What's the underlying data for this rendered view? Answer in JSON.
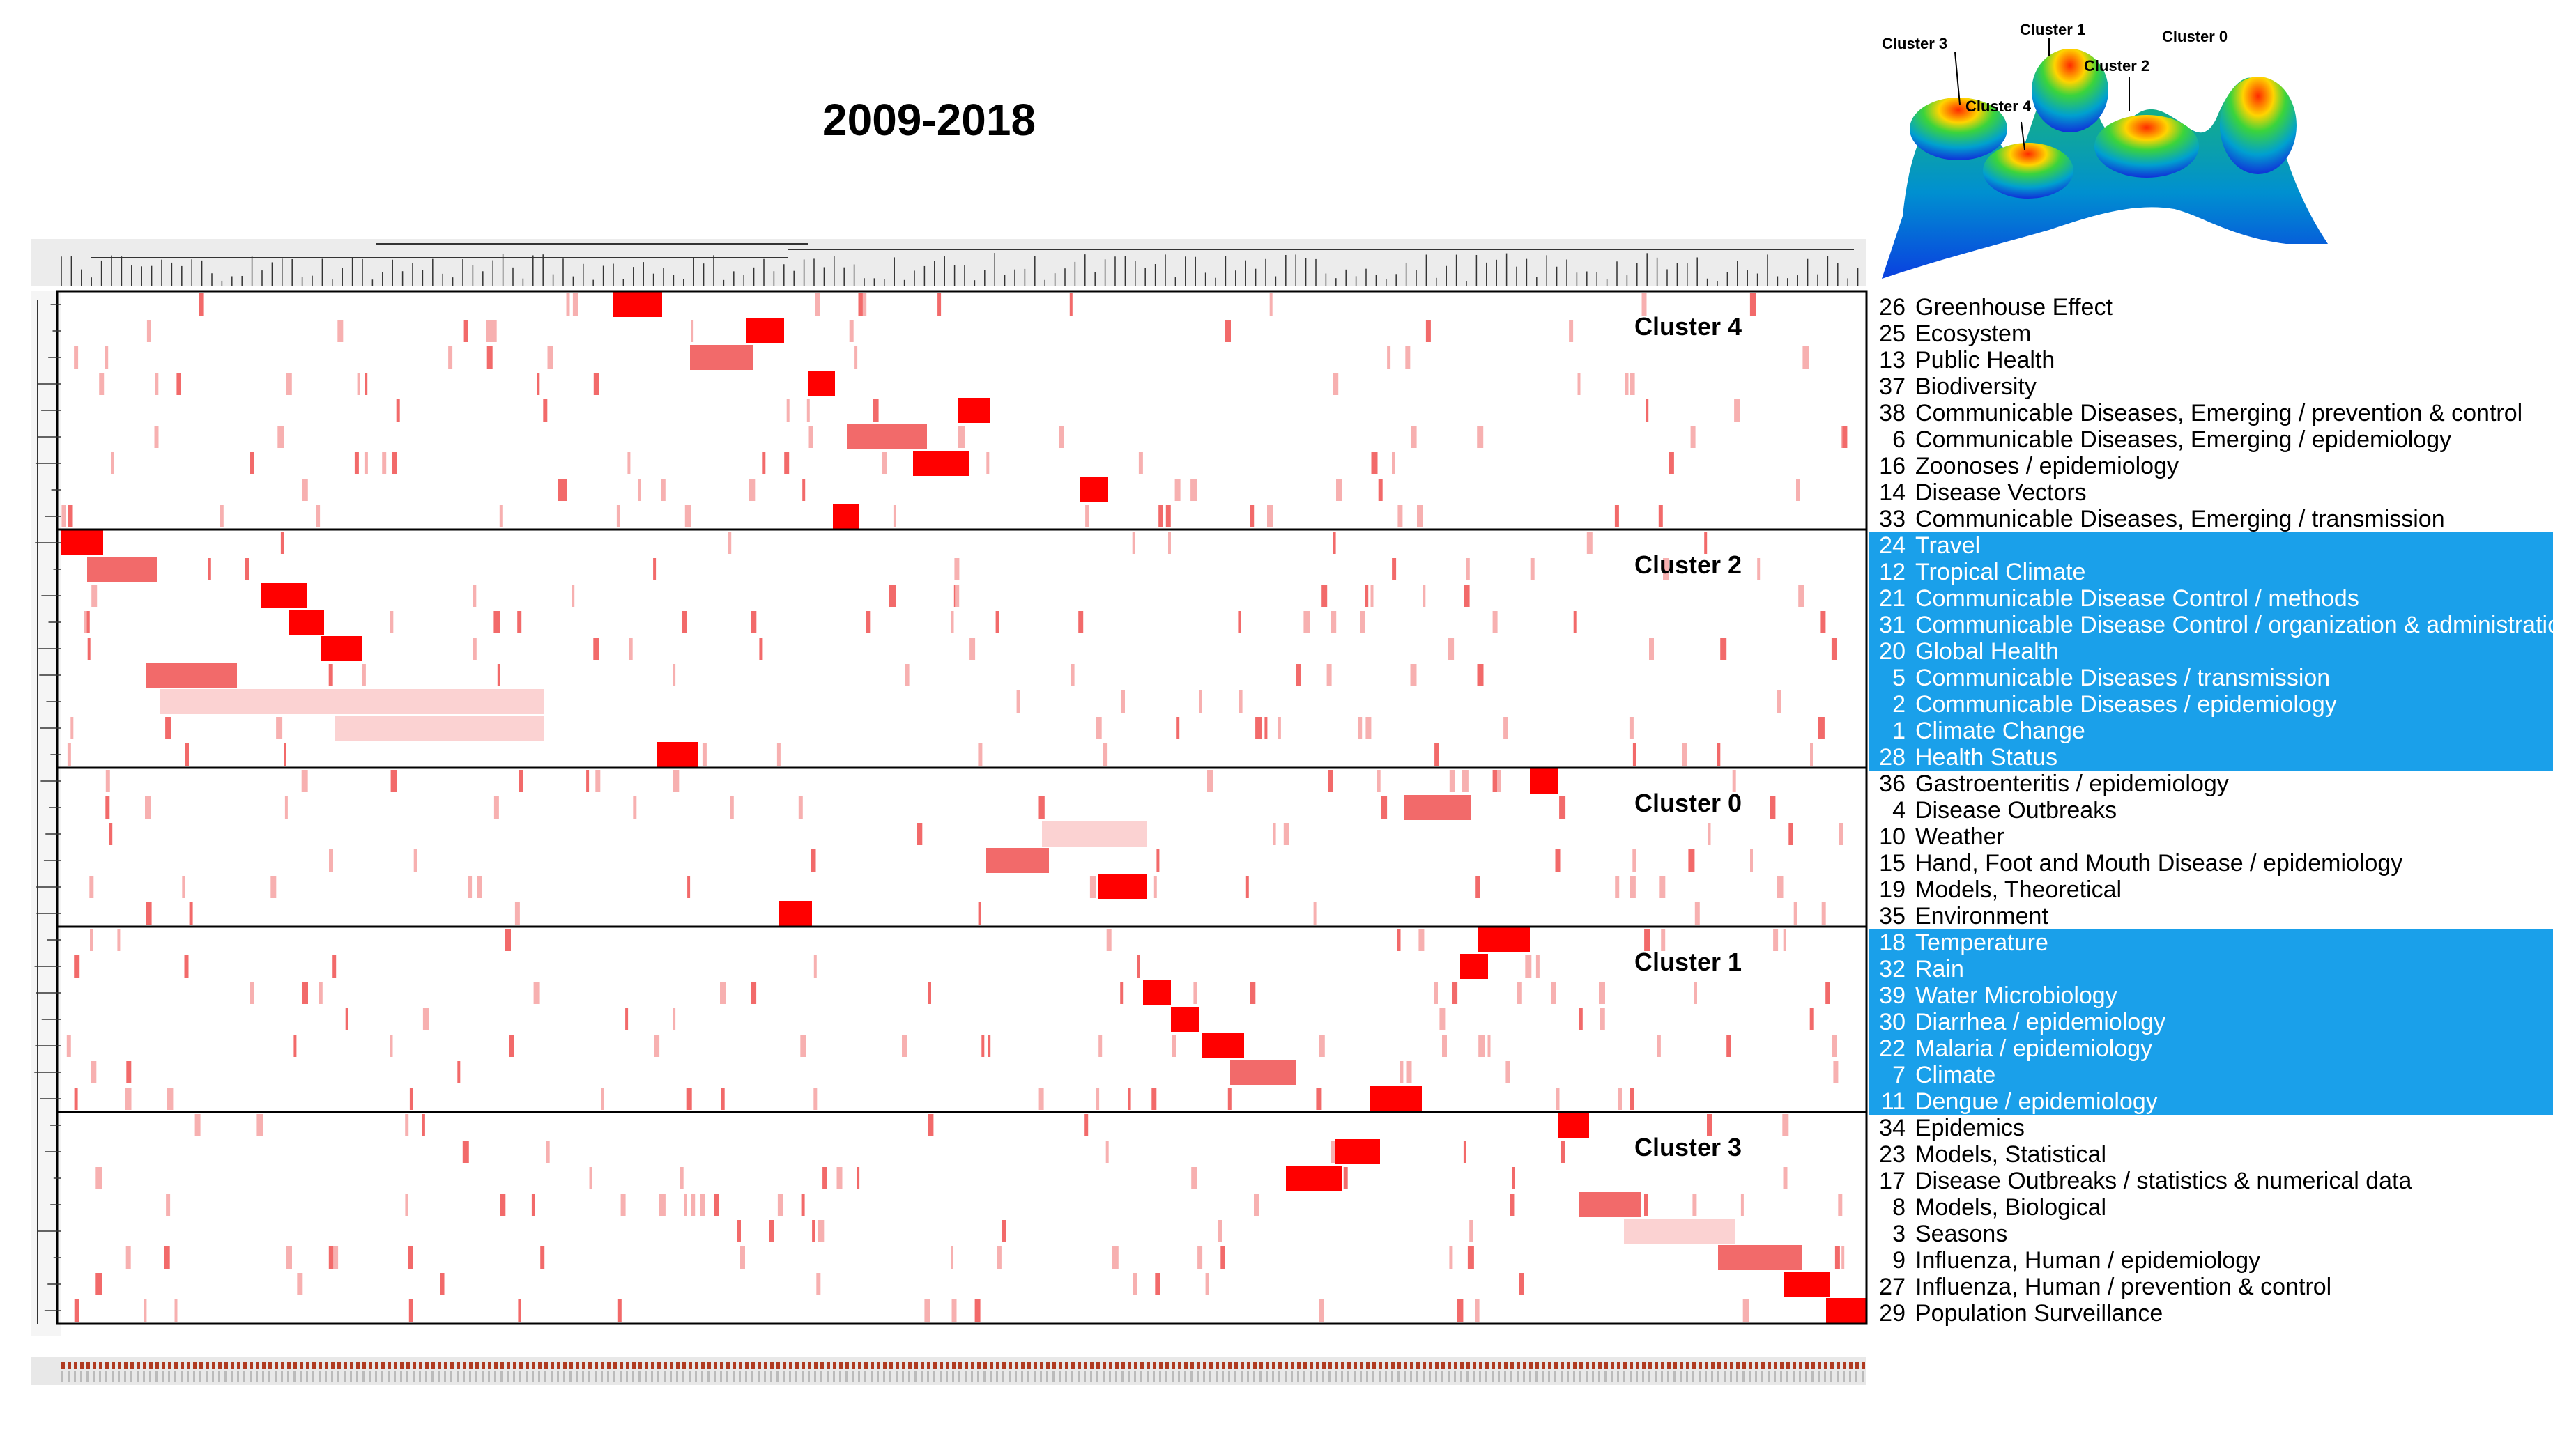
{
  "title": "2009-2018",
  "legend_peaks": [
    "Cluster 3",
    "Cluster 1",
    "Cluster 0",
    "Cluster 2",
    "Cluster 4"
  ],
  "colors": {
    "highlight": "#1aa0ea",
    "strong": "#ff0000",
    "medium": "#f26a6a",
    "light": "#f7b0b0",
    "pale": "#fbd2d2"
  },
  "chart_data": {
    "type": "heatmap",
    "title": "2009-2018",
    "clusters": [
      {
        "name": "Cluster 4",
        "highlight": false,
        "terms": [
          {
            "num": "26",
            "label": "Greenhouse Effect"
          },
          {
            "num": "25",
            "label": "Ecosystem"
          },
          {
            "num": "13",
            "label": "Public Health"
          },
          {
            "num": "37",
            "label": "Biodiversity"
          },
          {
            "num": "38",
            "label": "Communicable Diseases, Emerging / prevention & control"
          },
          {
            "num": "6",
            "label": "Communicable Diseases, Emerging / epidemiology"
          },
          {
            "num": "16",
            "label": "Zoonoses / epidemiology"
          },
          {
            "num": "14",
            "label": "Disease Vectors"
          },
          {
            "num": "33",
            "label": "Communicable Diseases, Emerging / transmission"
          }
        ]
      },
      {
        "name": "Cluster 2",
        "highlight": true,
        "terms": [
          {
            "num": "24",
            "label": "Travel"
          },
          {
            "num": "12",
            "label": "Tropical Climate"
          },
          {
            "num": "21",
            "label": "Communicable Disease Control / methods"
          },
          {
            "num": "31",
            "label": "Communicable Disease Control / organization & administration"
          },
          {
            "num": "20",
            "label": "Global Health"
          },
          {
            "num": "5",
            "label": "Communicable Diseases / transmission"
          },
          {
            "num": "2",
            "label": "Communicable Diseases / epidemiology"
          },
          {
            "num": "1",
            "label": "Climate Change"
          },
          {
            "num": "28",
            "label": "Health Status"
          }
        ]
      },
      {
        "name": "Cluster 0",
        "highlight": false,
        "terms": [
          {
            "num": "36",
            "label": "Gastroenteritis / epidemiology"
          },
          {
            "num": "4",
            "label": "Disease Outbreaks"
          },
          {
            "num": "10",
            "label": "Weather"
          },
          {
            "num": "15",
            "label": "Hand, Foot and Mouth Disease / epidemiology"
          },
          {
            "num": "19",
            "label": "Models, Theoretical"
          },
          {
            "num": "35",
            "label": "Environment"
          }
        ]
      },
      {
        "name": "Cluster 1",
        "highlight": true,
        "terms": [
          {
            "num": "18",
            "label": "Temperature"
          },
          {
            "num": "32",
            "label": "Rain"
          },
          {
            "num": "39",
            "label": "Water Microbiology"
          },
          {
            "num": "30",
            "label": "Diarrhea / epidemiology"
          },
          {
            "num": "22",
            "label": "Malaria / epidemiology"
          },
          {
            "num": "7",
            "label": "Climate"
          },
          {
            "num": "11",
            "label": "Dengue / epidemiology"
          }
        ]
      },
      {
        "name": "Cluster 3",
        "highlight": false,
        "terms": [
          {
            "num": "34",
            "label": "Epidemics"
          },
          {
            "num": "23",
            "label": "Models, Statistical"
          },
          {
            "num": "17",
            "label": "Disease Outbreaks / statistics & numerical data"
          },
          {
            "num": "8",
            "label": "Models, Biological"
          },
          {
            "num": "3",
            "label": "Seasons"
          },
          {
            "num": "9",
            "label": "Influenza, Human / epidemiology"
          },
          {
            "num": "27",
            "label": "Influenza, Human / prevention & control"
          },
          {
            "num": "29",
            "label": "Population Surveillance"
          }
        ]
      }
    ]
  }
}
